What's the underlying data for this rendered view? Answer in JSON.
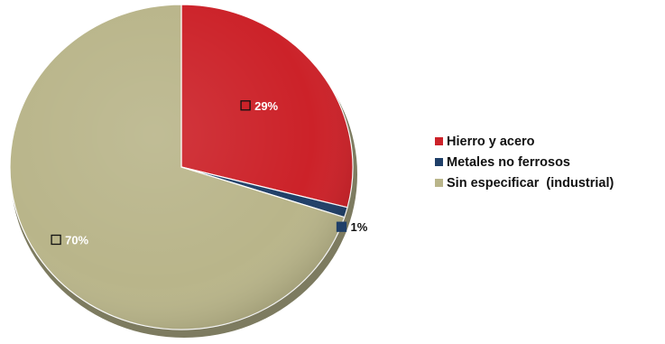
{
  "chart_data": {
    "type": "pie",
    "slices": [
      {
        "label": "Hierro y acero",
        "value": 29,
        "display": "29%",
        "color": "#cc2229"
      },
      {
        "label": "Metales no ferrosos",
        "value": 1,
        "display": "1%",
        "color": "#1f3f68"
      },
      {
        "label": "Sin especificar  (industrial)",
        "value": 70,
        "display": "70%",
        "color": "#b9b58a"
      }
    ],
    "start": "top",
    "direction": "clockwise",
    "legend_position": "right",
    "style": "3d-tilted"
  }
}
